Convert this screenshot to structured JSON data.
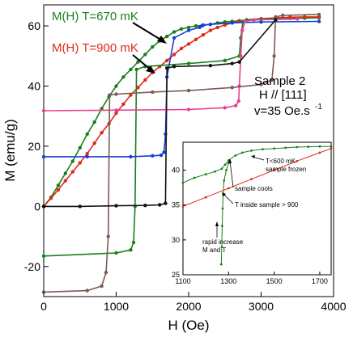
{
  "chart_data": [
    {
      "type": "line",
      "title": "",
      "xlabel": "H (Oe)",
      "ylabel": "M  (emu/g)",
      "xlim": [
        0,
        4000
      ],
      "ylim": [
        -30,
        67
      ],
      "xticks": [
        "0",
        "1000",
        "2000",
        "3000",
        "4000"
      ],
      "yticks": [
        "-20",
        "0",
        "20",
        "40",
        "60"
      ],
      "grid": false,
      "legend": "none",
      "series": [
        {
          "name": "M(H) T=670 mK",
          "color": "#1a7f1a",
          "x": [
            0,
            100,
            200,
            300,
            400,
            500,
            600,
            700,
            800,
            900,
            1000,
            1100,
            1200,
            1300,
            1400,
            1500,
            1600,
            1700,
            1800,
            1900,
            2000,
            2100,
            2200,
            2300,
            2400,
            2500,
            2600,
            2700,
            2800,
            3000,
            3200,
            3400,
            3600,
            3800
          ],
          "y": [
            0,
            3,
            7,
            11,
            15,
            19.5,
            24,
            28,
            32.5,
            36.5,
            40,
            43,
            45.5,
            48,
            50.5,
            53,
            55,
            56.5,
            58,
            59,
            59.5,
            60,
            60.2,
            60.5,
            61,
            61.3,
            61.5,
            61.7,
            61.9,
            62.1,
            62.3,
            62.5,
            62.6,
            62.7
          ]
        },
        {
          "name": "M(H) T=900 mK",
          "color": "#e02a1a",
          "x": [
            0,
            100,
            200,
            300,
            400,
            500,
            600,
            700,
            800,
            900,
            1000,
            1100,
            1200,
            1300,
            1400,
            1500,
            1600,
            1700,
            1800,
            1900,
            2000,
            2100,
            2200,
            2300,
            2400,
            2500,
            2600,
            2700,
            2800,
            3000,
            3200,
            3400,
            3600,
            3800
          ],
          "y": [
            0,
            2.7,
            5.5,
            8.5,
            11.5,
            14.5,
            17.5,
            21,
            24.5,
            27.5,
            31,
            34,
            37,
            39.5,
            42,
            44.5,
            46.5,
            48.5,
            50.5,
            52.5,
            54,
            55.5,
            57,
            58.5,
            59.5,
            60.3,
            61,
            61.5,
            62,
            62.4,
            62.7,
            62.9,
            63,
            63
          ]
        },
        {
          "name": "",
          "color": "#1a7f1a",
          "x": [
            0,
            1000,
            1200,
            1240,
            1260,
            1280,
            1400,
            2000,
            2500,
            2700,
            2720,
            2750,
            2800,
            3200
          ],
          "y": [
            -16.5,
            -15.5,
            -14.5,
            -12,
            0,
            45.5,
            46.5,
            47.5,
            48.5,
            50,
            56,
            61.5,
            62,
            62.5
          ]
        },
        {
          "name": "",
          "color": "#1a3fd6",
          "x": [
            0,
            600,
            1200,
            1500,
            1620,
            1660,
            1680,
            1700,
            1800,
            2000,
            2150,
            2180,
            2200,
            2300,
            2600,
            3000,
            3800
          ],
          "y": [
            16.5,
            16.5,
            16.5,
            16.8,
            17,
            18,
            24,
            43,
            56,
            58.5,
            59.5,
            60,
            60.3,
            60.5,
            61,
            61.3,
            61.5
          ]
        },
        {
          "name": "",
          "color": "#e8408f",
          "x": [
            0,
            1000,
            2000,
            2500,
            2650,
            2690,
            2700,
            2720,
            2740,
            2780,
            2900,
            3500
          ],
          "y": [
            31.8,
            32,
            32.2,
            32.8,
            33.5,
            35,
            40,
            50,
            58.5,
            61.5,
            62,
            62.3
          ]
        },
        {
          "name": "",
          "color": "#7a5c52",
          "x": [
            0,
            600,
            800,
            860,
            890,
            910,
            1000,
            1500,
            2000,
            2600,
            3000,
            3150,
            3180,
            3200,
            3300,
            3800
          ],
          "y": [
            -28.5,
            -28,
            -26.5,
            -22,
            -10,
            37,
            37.3,
            38,
            38.5,
            39.5,
            40.5,
            42,
            50,
            63,
            63.5,
            63.8
          ]
        },
        {
          "name": "",
          "color": "#111111",
          "x": [
            0,
            500,
            1000,
            1400,
            1600,
            1680,
            1700,
            1800,
            2300,
            2600,
            2700,
            3200
          ],
          "y": [
            0,
            0,
            0.2,
            0.3,
            0.5,
            1,
            46,
            46.5,
            46.8,
            47.5,
            48,
            62
          ]
        }
      ],
      "annotations": [
        "Sample 2",
        "H // [111]",
        "v=35 Oe.s",
        "-1"
      ]
    },
    {
      "type": "line",
      "title": "",
      "xlabel": "",
      "ylabel": "",
      "xlim": [
        1100,
        1750
      ],
      "ylim": [
        25,
        44
      ],
      "xticks": [
        "1100",
        "1300",
        "1500",
        "1700"
      ],
      "yticks": [
        "25",
        "30",
        "35",
        "40"
      ],
      "grid": false,
      "series": [
        {
          "name": "",
          "color": "#1a7f1a",
          "x": [
            1100,
            1150,
            1200,
            1240,
            1270,
            1285,
            1300,
            1330,
            1360,
            1400,
            1450,
            1500,
            1550,
            1600,
            1650,
            1700,
            1750
          ],
          "y": [
            38.2,
            38.9,
            39.4,
            39.8,
            40.2,
            40.8,
            41.4,
            42.1,
            42.5,
            42.8,
            43,
            43.1,
            43.2,
            43.3,
            43.35,
            43.4,
            43.4
          ]
        },
        {
          "name": "",
          "color": "#e02a1a",
          "x": [
            1100,
            1200,
            1300,
            1400,
            1500,
            1600,
            1700,
            1750
          ],
          "y": [
            34.8,
            36.1,
            37.4,
            38.7,
            40,
            41.3,
            42.5,
            43.1
          ]
        },
        {
          "name": "",
          "color": "#1a7f1a",
          "x": [
            1268,
            1270,
            1272,
            1274,
            1276,
            1280,
            1290,
            1300
          ],
          "y": [
            26.5,
            29,
            32,
            34.5,
            36.5,
            38.5,
            40,
            41
          ]
        }
      ],
      "annotations": [
        "T<600 mK",
        "sample frozen",
        "sample cools",
        "T inside sample > 900",
        "rapid increase",
        "M and T"
      ]
    }
  ]
}
